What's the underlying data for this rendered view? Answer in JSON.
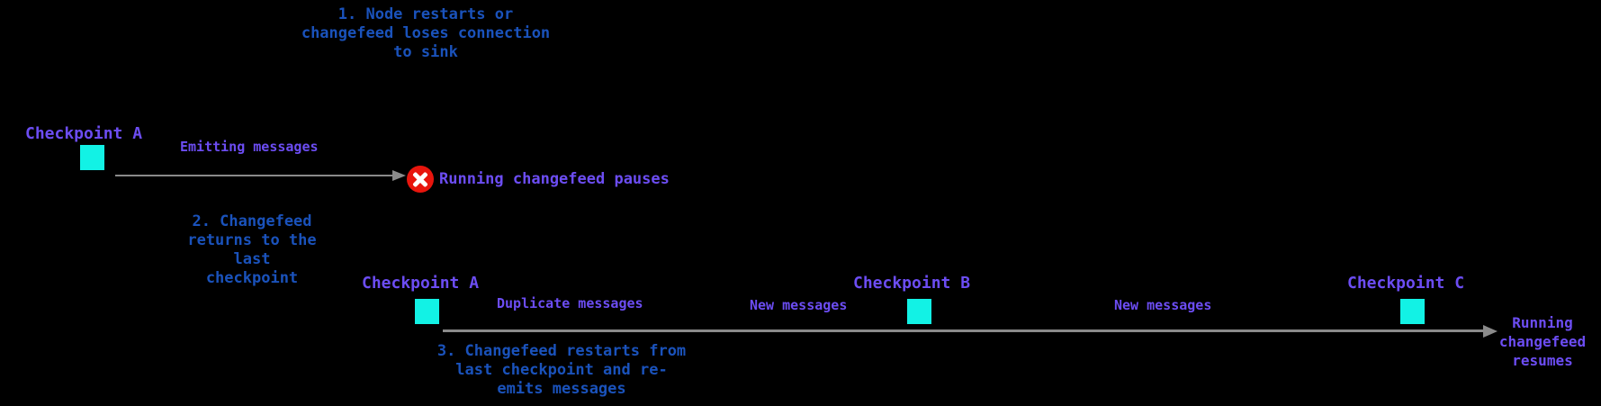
{
  "colors": {
    "background": "#000000",
    "note_blue": "#1a52bb",
    "label_purple": "#6c4df3",
    "checkpoint_cyan": "#12f2e5",
    "arrow_gray": "#8a8a8a",
    "error_red": "#e8150d",
    "error_x_white": "#ffffff"
  },
  "notes": {
    "step1": "1. Node restarts or\nchangefeed loses connection\nto sink",
    "step2": "2. Changefeed\nreturns to the\nlast\ncheckpoint",
    "step3": "3. Changefeed restarts from\nlast checkpoint and re-\nemits messages"
  },
  "timeline1": {
    "checkpoint_a": "Checkpoint A",
    "emitting": "Emitting messages",
    "pause_label": "Running changefeed pauses",
    "pause_icon": "error-x-icon"
  },
  "timeline2": {
    "checkpoint_a": "Checkpoint A",
    "duplicate": "Duplicate messages",
    "new_messages_1": "New messages",
    "checkpoint_b": "Checkpoint B",
    "new_messages_2": "New messages",
    "checkpoint_c": "Checkpoint C",
    "resume_label": "Running\nchangefeed\nresumes"
  }
}
